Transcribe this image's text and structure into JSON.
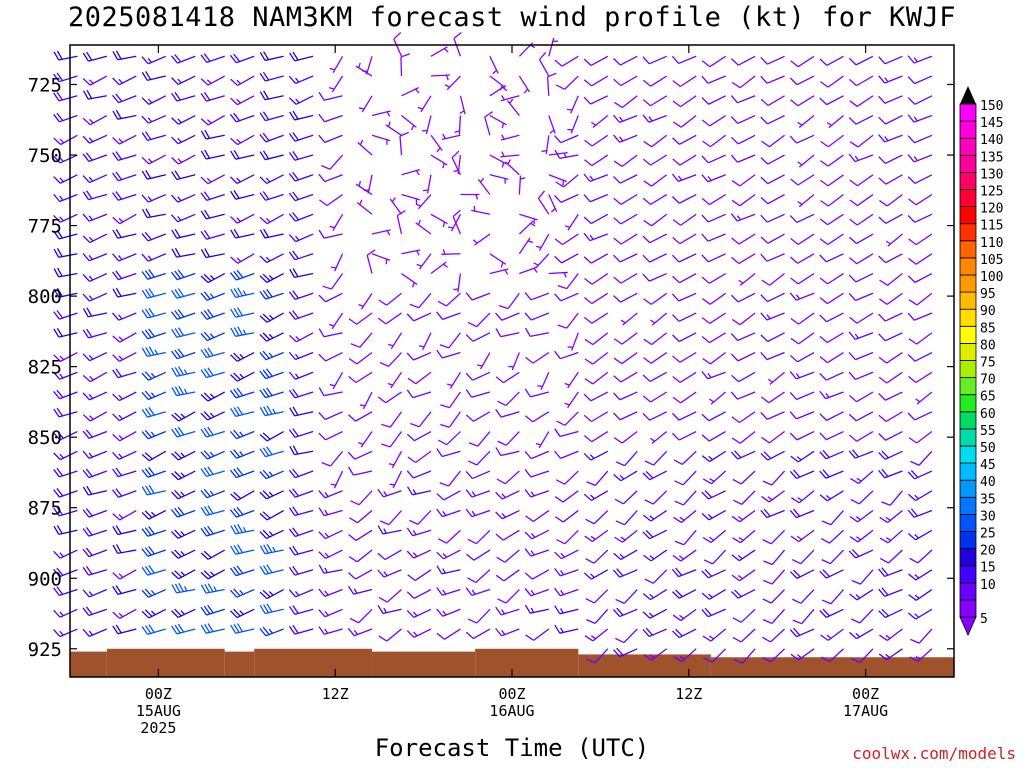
{
  "title": "2025081418 NAM3KM forecast wind profile (kt) for KWJF",
  "xlabel": "Forecast Time (UTC)",
  "credit": "coolwx.com/models",
  "colors": {
    "ground": "#a0522d",
    "frame": "#000000"
  },
  "chart_data": {
    "type": "wind_barb_time_height",
    "units": "kt",
    "y_axis": {
      "label": "",
      "ticks": [
        725,
        750,
        775,
        800,
        825,
        850,
        875,
        900,
        925
      ],
      "range": [
        935,
        711
      ],
      "direction": "pressure decreasing upward"
    },
    "x_axis": {
      "ticks": [
        {
          "hour": 6,
          "lines": [
            "00Z",
            "15AUG",
            "2025"
          ]
        },
        {
          "hour": 18,
          "lines": [
            "12Z"
          ]
        },
        {
          "hour": 30,
          "lines": [
            "00Z",
            "16AUG"
          ]
        },
        {
          "hour": 42,
          "lines": [
            "12Z"
          ]
        },
        {
          "hour": 54,
          "lines": [
            "00Z",
            "17AUG"
          ]
        }
      ],
      "range": [
        0,
        60
      ]
    },
    "colorbar": {
      "labels": [
        5,
        10,
        15,
        20,
        25,
        30,
        35,
        40,
        45,
        50,
        55,
        60,
        65,
        70,
        75,
        80,
        85,
        90,
        95,
        100,
        105,
        110,
        115,
        120,
        125,
        130,
        135,
        140,
        145,
        150
      ],
      "colors": [
        "#8800ff",
        "#6a00ff",
        "#4400ff",
        "#2200dd",
        "#0033ee",
        "#0055ff",
        "#0077ff",
        "#0099ff",
        "#00bbff",
        "#00ddee",
        "#00ddaa",
        "#00dd66",
        "#22ee22",
        "#66ee22",
        "#aaee00",
        "#ddee00",
        "#ffff00",
        "#ffdd00",
        "#ffbb00",
        "#ff9900",
        "#ff8800",
        "#ff6600",
        "#ff3300",
        "#ff0000",
        "#ff0033",
        "#ff0066",
        "#ff0099",
        "#ff00bb",
        "#ff00dd",
        "#ff00ff"
      ]
    },
    "ground_level_hpa": [
      {
        "from": 0,
        "to": 2.5,
        "p": 926
      },
      {
        "from": 2.5,
        "to": 10.5,
        "p": 925
      },
      {
        "from": 10.5,
        "to": 12.5,
        "p": 926
      },
      {
        "from": 12.5,
        "to": 20.5,
        "p": 925
      },
      {
        "from": 20.5,
        "to": 27.5,
        "p": 926
      },
      {
        "from": 27.5,
        "to": 34.5,
        "p": 925
      },
      {
        "from": 34.5,
        "to": 43.5,
        "p": 927
      },
      {
        "from": 43.5,
        "to": 60,
        "p": 928
      }
    ],
    "wind_field": {
      "hours": [
        0,
        60
      ],
      "time_step_hours": 2,
      "levels_hpa_top": 715,
      "levels_hpa_bottom": 925,
      "level_step_hpa": 7,
      "regimes": [
        {
          "name": "early_period",
          "hours": [
            0,
            17
          ],
          "direction_deg": 250,
          "speed_range_kt": [
            15,
            35
          ]
        },
        {
          "name": "light_variable",
          "hours": [
            17,
            35
          ],
          "direction_deg": "variable",
          "speed_range_kt": [
            3,
            10
          ]
        },
        {
          "name": "late_period",
          "hours": [
            35,
            60
          ],
          "direction_deg": 240,
          "speed_range_kt": [
            8,
            20
          ]
        }
      ]
    }
  }
}
